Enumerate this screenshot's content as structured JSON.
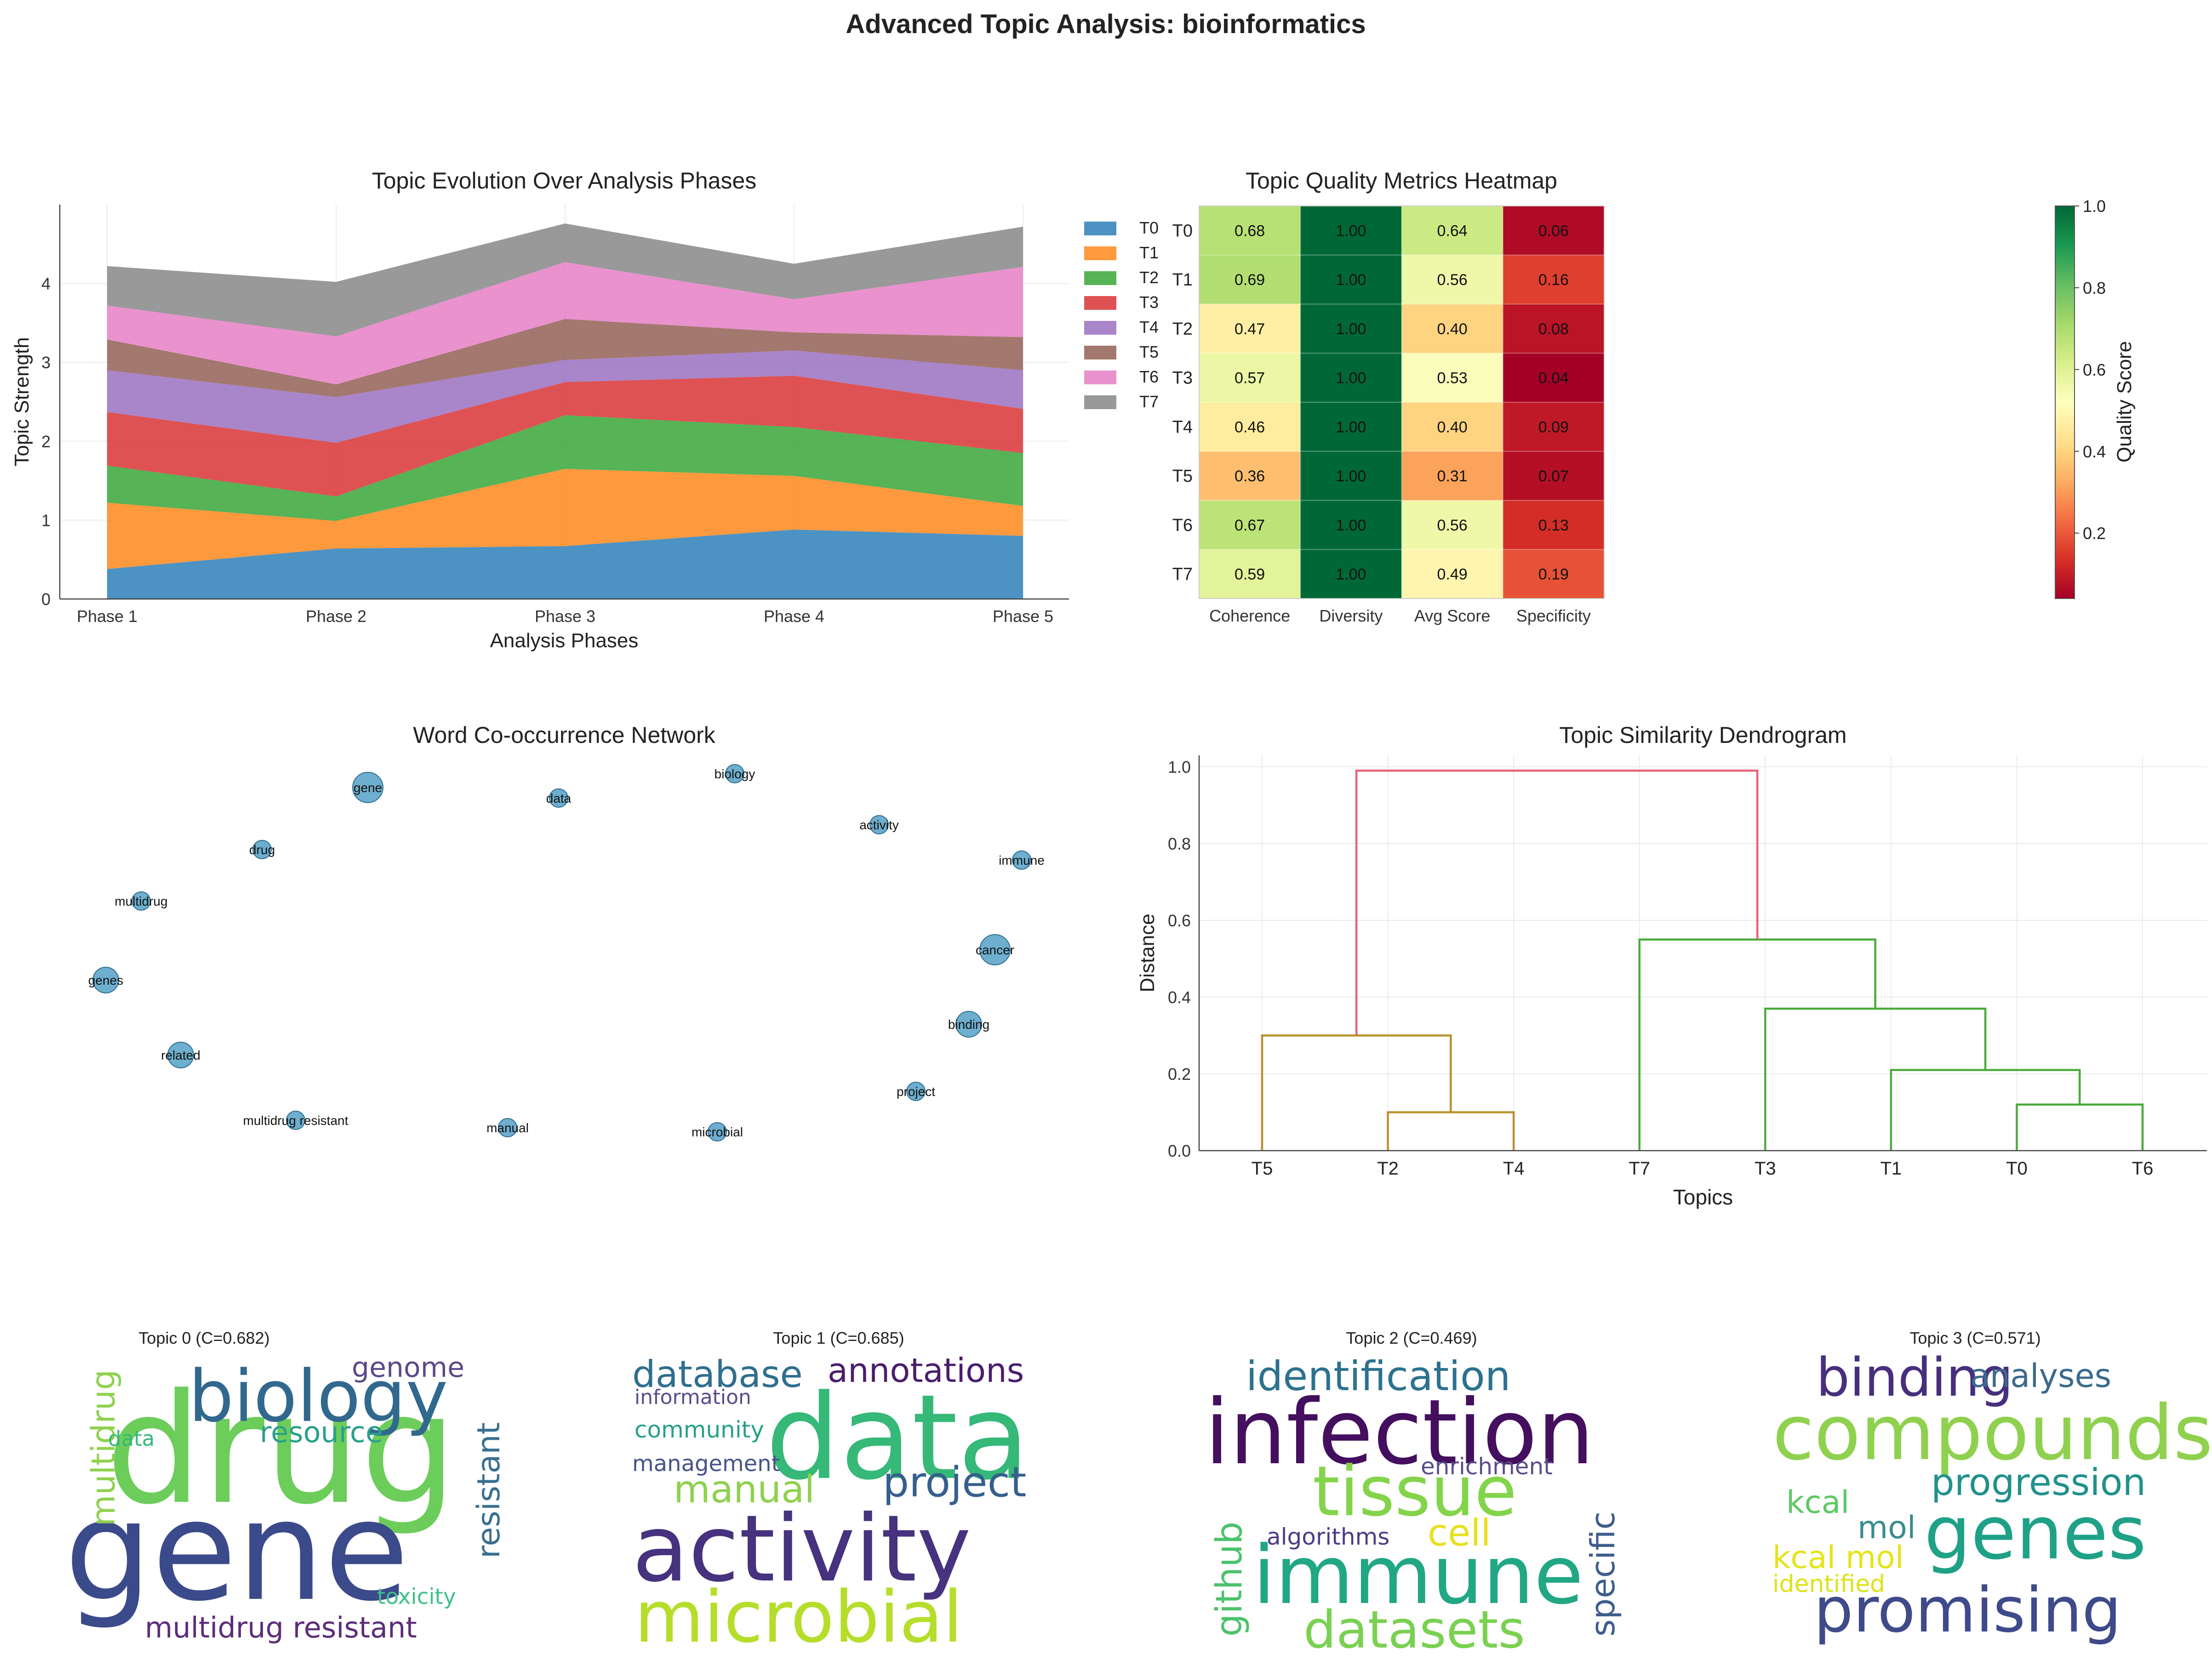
{
  "figure_title": "Advanced Topic Analysis: bioinformatics",
  "colors": {
    "T0": "#1f77b4",
    "T1": "#ff7f0e",
    "T2": "#2ca02c",
    "T3": "#d62728",
    "T4": "#9467bd",
    "T5": "#8c564b",
    "T6": "#e377c2",
    "T7": "#7f7f7f",
    "node": "#4a9ac2",
    "dendro_top": "#e8607a",
    "dendro_left": "#b8902a",
    "dendro_right": "#4aaa3a"
  },
  "chart_data": [
    {
      "type": "area",
      "stacked": true,
      "title": "Topic Evolution Over Analysis Phases",
      "xlabel": "Analysis Phases",
      "ylabel": "Topic Strength",
      "categories": [
        "Phase 1",
        "Phase 2",
        "Phase 3",
        "Phase 4",
        "Phase 5"
      ],
      "yticks": [
        0,
        1,
        2,
        3,
        4
      ],
      "ylim": [
        0,
        5
      ],
      "legend": "outside-right",
      "grid": true,
      "series": [
        {
          "name": "T0",
          "values": [
            0.38,
            0.64,
            0.67,
            0.88,
            0.8
          ]
        },
        {
          "name": "T1",
          "values": [
            0.84,
            0.35,
            0.98,
            0.68,
            0.38
          ]
        },
        {
          "name": "T2",
          "values": [
            0.47,
            0.31,
            0.68,
            0.62,
            0.67
          ]
        },
        {
          "name": "T3",
          "values": [
            0.68,
            0.68,
            0.42,
            0.65,
            0.56
          ]
        },
        {
          "name": "T4",
          "values": [
            0.53,
            0.58,
            0.28,
            0.32,
            0.49
          ]
        },
        {
          "name": "T5",
          "values": [
            0.39,
            0.16,
            0.52,
            0.23,
            0.42
          ]
        },
        {
          "name": "T6",
          "values": [
            0.43,
            0.61,
            0.72,
            0.42,
            0.89
          ]
        },
        {
          "name": "T7",
          "values": [
            0.5,
            0.69,
            0.49,
            0.45,
            0.51
          ]
        }
      ]
    },
    {
      "type": "heatmap",
      "title": "Topic Quality Metrics Heatmap",
      "columns": [
        "Coherence",
        "Diversity",
        "Avg Score",
        "Specificity"
      ],
      "rows": [
        "T0",
        "T1",
        "T2",
        "T3",
        "T4",
        "T5",
        "T6",
        "T7"
      ],
      "values": [
        [
          0.68,
          1.0,
          0.64,
          0.06
        ],
        [
          0.69,
          1.0,
          0.56,
          0.16
        ],
        [
          0.47,
          1.0,
          0.4,
          0.08
        ],
        [
          0.57,
          1.0,
          0.53,
          0.04
        ],
        [
          0.46,
          1.0,
          0.4,
          0.09
        ],
        [
          0.36,
          1.0,
          0.31,
          0.07
        ],
        [
          0.67,
          1.0,
          0.56,
          0.13
        ],
        [
          0.59,
          1.0,
          0.49,
          0.19
        ]
      ],
      "colorbar_label": "Quality Score",
      "colorbar_ticks": [
        "0.2",
        "0.4",
        "0.6",
        "0.8",
        "1.0"
      ],
      "vmin": 0.04,
      "vmax": 1.0
    },
    {
      "type": "scatter",
      "subtype": "network",
      "title": "Word Co-occurrence Network",
      "nodes": [
        {
          "label": "gene",
          "size": 3
        },
        {
          "label": "data",
          "size": 1
        },
        {
          "label": "biology",
          "size": 1
        },
        {
          "label": "activity",
          "size": 1
        },
        {
          "label": "drug",
          "size": 1
        },
        {
          "label": "immune",
          "size": 1
        },
        {
          "label": "multidrug",
          "size": 1
        },
        {
          "label": "cancer",
          "size": 3
        },
        {
          "label": "genes",
          "size": 2
        },
        {
          "label": "binding",
          "size": 2
        },
        {
          "label": "related",
          "size": 2
        },
        {
          "label": "project",
          "size": 1
        },
        {
          "label": "multidrug resistant",
          "size": 1
        },
        {
          "label": "manual",
          "size": 1
        },
        {
          "label": "microbial",
          "size": 1
        }
      ]
    },
    {
      "type": "dendrogram",
      "title": "Topic Similarity Dendrogram",
      "xlabel": "Topics",
      "ylabel": "Distance",
      "leaves": [
        "T5",
        "T2",
        "T4",
        "T7",
        "T3",
        "T1",
        "T0",
        "T6"
      ],
      "yticks": [
        0.0,
        0.2,
        0.4,
        0.6,
        0.8,
        1.0
      ],
      "ylim": [
        0,
        1.03
      ],
      "merges": [
        {
          "left": "T2",
          "right": "T4",
          "height": 0.1,
          "color": "dendro_left"
        },
        {
          "left": "T5",
          "right": "T2+T4",
          "height": 0.3,
          "color": "dendro_left"
        },
        {
          "left": "T0",
          "right": "T6",
          "height": 0.12,
          "color": "dendro_right"
        },
        {
          "left": "T1",
          "right": "T0+T6",
          "height": 0.21,
          "color": "dendro_right"
        },
        {
          "left": "T3",
          "right": "T1+T0+T6",
          "height": 0.37,
          "color": "dendro_right"
        },
        {
          "left": "T7",
          "right": "T3+T1+T0+T6",
          "height": 0.55,
          "color": "dendro_right"
        },
        {
          "left": "T5+T2+T4",
          "right": "T7+T3+T1+T0+T6",
          "height": 0.99,
          "color": "dendro_top"
        }
      ]
    }
  ],
  "wordclouds": [
    {
      "title": "Topic 0 (C=0.682)",
      "words": [
        {
          "text": "drug",
          "color": "#6ccd5a"
        },
        {
          "text": "gene",
          "color": "#3b4a8a"
        },
        {
          "text": "biology",
          "color": "#31688e"
        },
        {
          "text": "genome",
          "color": "#5a4a88"
        },
        {
          "text": "resource",
          "color": "#2a9f8a"
        },
        {
          "text": "multidrug",
          "color": "#8fd14f"
        },
        {
          "text": "data",
          "color": "#35b779"
        },
        {
          "text": "resistant",
          "color": "#3a6f8f"
        },
        {
          "text": "toxicity",
          "color": "#3fc08a"
        },
        {
          "text": "multidrug resistant",
          "color": "#5c2c7a"
        }
      ]
    },
    {
      "title": "Topic 1 (C=0.685)",
      "words": [
        {
          "text": "database",
          "color": "#2f6e8e"
        },
        {
          "text": "annotations",
          "color": "#4a1d6b"
        },
        {
          "text": "information",
          "color": "#5a4b8b"
        },
        {
          "text": "community",
          "color": "#26a08a"
        },
        {
          "text": "data",
          "color": "#36b878"
        },
        {
          "text": "management",
          "color": "#46528a"
        },
        {
          "text": "manual",
          "color": "#8fd14f"
        },
        {
          "text": "project",
          "color": "#355f8d"
        },
        {
          "text": "activity",
          "color": "#46327e"
        },
        {
          "text": "microbial",
          "color": "#b5de2b"
        }
      ]
    },
    {
      "title": "Topic 2 (C=0.469)",
      "words": [
        {
          "text": "identification",
          "color": "#2c728e"
        },
        {
          "text": "infection",
          "color": "#440f5e"
        },
        {
          "text": "enrichment",
          "color": "#5a4b8b"
        },
        {
          "text": "tissue",
          "color": "#84d44b"
        },
        {
          "text": "specific",
          "color": "#3e5e8c"
        },
        {
          "text": "github",
          "color": "#4cc26c"
        },
        {
          "text": "algorithms",
          "color": "#4a3d86"
        },
        {
          "text": "cell",
          "color": "#e8e01e"
        },
        {
          "text": "immune",
          "color": "#22a785"
        },
        {
          "text": "datasets",
          "color": "#7ad151"
        }
      ]
    },
    {
      "title": "Topic 3 (C=0.571)",
      "words": [
        {
          "text": "binding",
          "color": "#472f7d"
        },
        {
          "text": "analyses",
          "color": "#3b6a8c"
        },
        {
          "text": "compounds",
          "color": "#8fd14f"
        },
        {
          "text": "progression",
          "color": "#21918c"
        },
        {
          "text": "kcal",
          "color": "#5ec962"
        },
        {
          "text": "mol",
          "color": "#3b8c8c"
        },
        {
          "text": "genes",
          "color": "#1fa187"
        },
        {
          "text": "kcal mol",
          "color": "#e5e419"
        },
        {
          "text": "identified",
          "color": "#dde318"
        },
        {
          "text": "promising",
          "color": "#3e4a89"
        }
      ]
    }
  ]
}
